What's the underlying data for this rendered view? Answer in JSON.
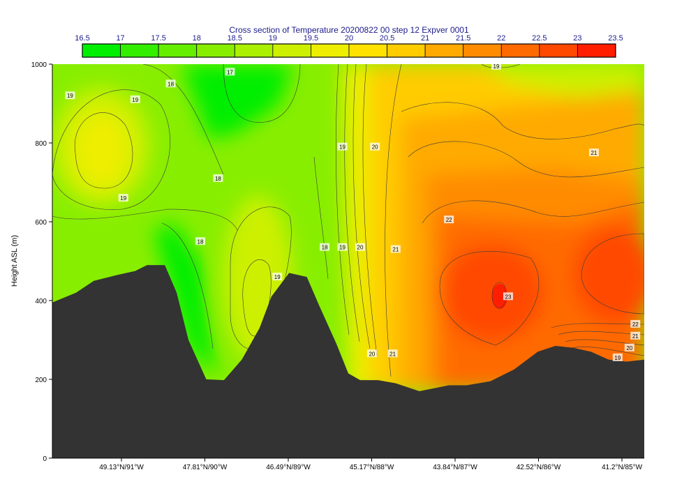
{
  "chart_data": {
    "type": "heatmap",
    "title": "Cross section of Temperature 20200822 00 step 12 Expver 0001",
    "ylabel": "Height ASL (m)",
    "xlabel": "",
    "ylim": [
      0,
      1000
    ],
    "y_ticks": [
      0,
      200,
      400,
      600,
      800,
      1000
    ],
    "x_tick_labels": [
      "49.13°N/91°W",
      "47.81°N/90°W",
      "46.49°N/89°W",
      "45.17°N/88°W",
      "43.84°N/87°W",
      "42.52°N/86°W",
      "41.2°N/85°W"
    ],
    "colorbar": {
      "levels": [
        16.5,
        17,
        17.5,
        18,
        18.5,
        19,
        19.5,
        20,
        20.5,
        21,
        21.5,
        22,
        22.5,
        23,
        23.5
      ],
      "level_labels": [
        "16.5",
        "17",
        "17.5",
        "18",
        "18.5",
        "19",
        "19.5",
        "20",
        "20.5",
        "21",
        "21.5",
        "22",
        "22.5",
        "23",
        "23.5"
      ],
      "colors": [
        "#00ee00",
        "#33ee00",
        "#66ee00",
        "#88ee00",
        "#aaf000",
        "#ccf000",
        "#eeee00",
        "#ffe200",
        "#ffcc00",
        "#ffaa00",
        "#ff8c00",
        "#ff6a00",
        "#ff4800",
        "#ff1e00"
      ]
    },
    "terrain_color": "#333333",
    "grid": false,
    "terrain_profile_x": [
      0,
      0.04,
      0.07,
      0.11,
      0.14,
      0.16,
      0.19,
      0.21,
      0.23,
      0.26,
      0.29,
      0.32,
      0.35,
      0.37,
      0.4,
      0.43,
      0.45,
      0.48,
      0.5,
      0.52,
      0.55,
      0.58,
      0.62,
      0.67,
      0.7,
      0.74,
      0.78,
      0.82,
      0.85,
      0.88,
      0.91,
      0.94,
      0.97,
      1.0
    ],
    "terrain_profile_height": [
      395,
      420,
      450,
      465,
      475,
      490,
      490,
      420,
      300,
      200,
      198,
      250,
      330,
      410,
      470,
      460,
      390,
      290,
      215,
      198,
      198,
      190,
      170,
      185,
      185,
      195,
      225,
      270,
      285,
      280,
      270,
      250,
      245,
      250
    ],
    "temperature_field_summary": [
      {
        "region": "upper-left warm cell",
        "x": 0.08,
        "height": 770,
        "value": 19.5
      },
      {
        "region": "upper cold pool",
        "x": 0.33,
        "height": 990,
        "value": 17
      },
      {
        "region": "mid valley warm cell",
        "x": 0.37,
        "height": 400,
        "value": 19
      },
      {
        "region": "lower hot core",
        "x": 0.75,
        "height": 420,
        "value": 23
      },
      {
        "region": "right hot core",
        "x": 0.97,
        "height": 450,
        "value": 22.5
      }
    ],
    "contour_labels": [
      {
        "text": "19",
        "x": 0.03,
        "height": 920
      },
      {
        "text": "19",
        "x": 0.14,
        "height": 910
      },
      {
        "text": "18",
        "x": 0.2,
        "height": 950
      },
      {
        "text": "17",
        "x": 0.3,
        "height": 980
      },
      {
        "text": "18",
        "x": 0.28,
        "height": 710
      },
      {
        "text": "19",
        "x": 0.12,
        "height": 660
      },
      {
        "text": "18",
        "x": 0.25,
        "height": 550
      },
      {
        "text": "19",
        "x": 0.38,
        "height": 460
      },
      {
        "text": "18",
        "x": 0.46,
        "height": 535
      },
      {
        "text": "19",
        "x": 0.49,
        "height": 535
      },
      {
        "text": "20",
        "x": 0.52,
        "height": 535
      },
      {
        "text": "21",
        "x": 0.58,
        "height": 530
      },
      {
        "text": "19",
        "x": 0.49,
        "height": 790
      },
      {
        "text": "20",
        "x": 0.545,
        "height": 790
      },
      {
        "text": "22",
        "x": 0.67,
        "height": 605
      },
      {
        "text": "21",
        "x": 0.915,
        "height": 775
      },
      {
        "text": "19",
        "x": 0.75,
        "height": 995
      },
      {
        "text": "23",
        "x": 0.77,
        "height": 410
      },
      {
        "text": "20",
        "x": 0.54,
        "height": 265
      },
      {
        "text": "21",
        "x": 0.575,
        "height": 265
      },
      {
        "text": "22",
        "x": 0.985,
        "height": 340
      },
      {
        "text": "21",
        "x": 0.985,
        "height": 310
      },
      {
        "text": "20",
        "x": 0.975,
        "height": 280
      },
      {
        "text": "19",
        "x": 0.955,
        "height": 255
      }
    ]
  }
}
